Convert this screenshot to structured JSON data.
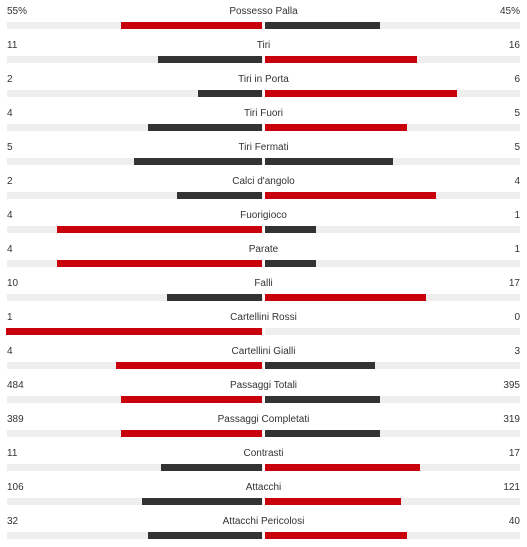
{
  "colors": {
    "leader": "#c8000b",
    "trailer": "#333333"
  },
  "stats": [
    {
      "label": "Possesso Palla",
      "home": "55%",
      "away": "45%",
      "home_value": 55,
      "away_value": 45
    },
    {
      "label": "Tiri",
      "home": "11",
      "away": "16",
      "home_value": 11,
      "away_value": 16
    },
    {
      "label": "Tiri in Porta",
      "home": "2",
      "away": "6",
      "home_value": 2,
      "away_value": 6
    },
    {
      "label": "Tiri Fuori",
      "home": "4",
      "away": "5",
      "home_value": 4,
      "away_value": 5
    },
    {
      "label": "Tiri Fermati",
      "home": "5",
      "away": "5",
      "home_value": 5,
      "away_value": 5
    },
    {
      "label": "Calci d'angolo",
      "home": "2",
      "away": "4",
      "home_value": 2,
      "away_value": 4
    },
    {
      "label": "Fuorigioco",
      "home": "4",
      "away": "1",
      "home_value": 4,
      "away_value": 1
    },
    {
      "label": "Parate",
      "home": "4",
      "away": "1",
      "home_value": 4,
      "away_value": 1
    },
    {
      "label": "Falli",
      "home": "10",
      "away": "17",
      "home_value": 10,
      "away_value": 17
    },
    {
      "label": "Cartellini Rossi",
      "home": "1",
      "away": "0",
      "home_value": 1,
      "away_value": 0
    },
    {
      "label": "Cartellini Gialli",
      "home": "4",
      "away": "3",
      "home_value": 4,
      "away_value": 3
    },
    {
      "label": "Passaggi Totali",
      "home": "484",
      "away": "395",
      "home_value": 484,
      "away_value": 395
    },
    {
      "label": "Passaggi Completati",
      "home": "389",
      "away": "319",
      "home_value": 389,
      "away_value": 319
    },
    {
      "label": "Contrasti",
      "home": "11",
      "away": "17",
      "home_value": 11,
      "away_value": 17
    },
    {
      "label": "Attacchi",
      "home": "106",
      "away": "121",
      "home_value": 106,
      "away_value": 121
    },
    {
      "label": "Attacchi Pericolosi",
      "home": "32",
      "away": "40",
      "home_value": 32,
      "away_value": 40
    }
  ]
}
